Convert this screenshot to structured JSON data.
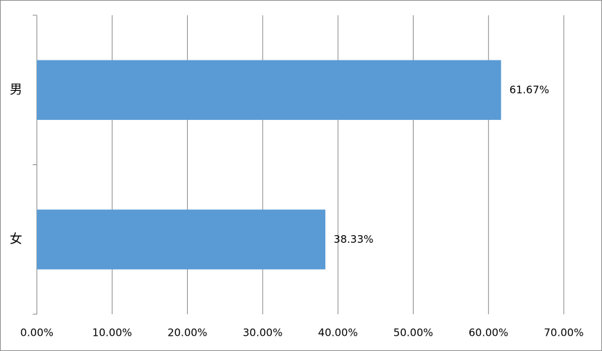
{
  "chart_data": {
    "type": "hbar",
    "categories": [
      "男",
      "女"
    ],
    "values": [
      61.67,
      38.33
    ],
    "value_labels": [
      "61.67%",
      "38.33%"
    ],
    "color": "#5b9bd5",
    "xlim": [
      0,
      70
    ],
    "xticks": [
      {
        "value": 0,
        "label": "0.00%"
      },
      {
        "value": 10,
        "label": "10.00%"
      },
      {
        "value": 20,
        "label": "20.00%"
      },
      {
        "value": 30,
        "label": "30.00%"
      },
      {
        "value": 40,
        "label": "40.00%"
      },
      {
        "value": 50,
        "label": "50.00%"
      },
      {
        "value": 60,
        "label": "60.00%"
      },
      {
        "value": 70,
        "label": "70.00%"
      }
    ],
    "grid": true
  }
}
